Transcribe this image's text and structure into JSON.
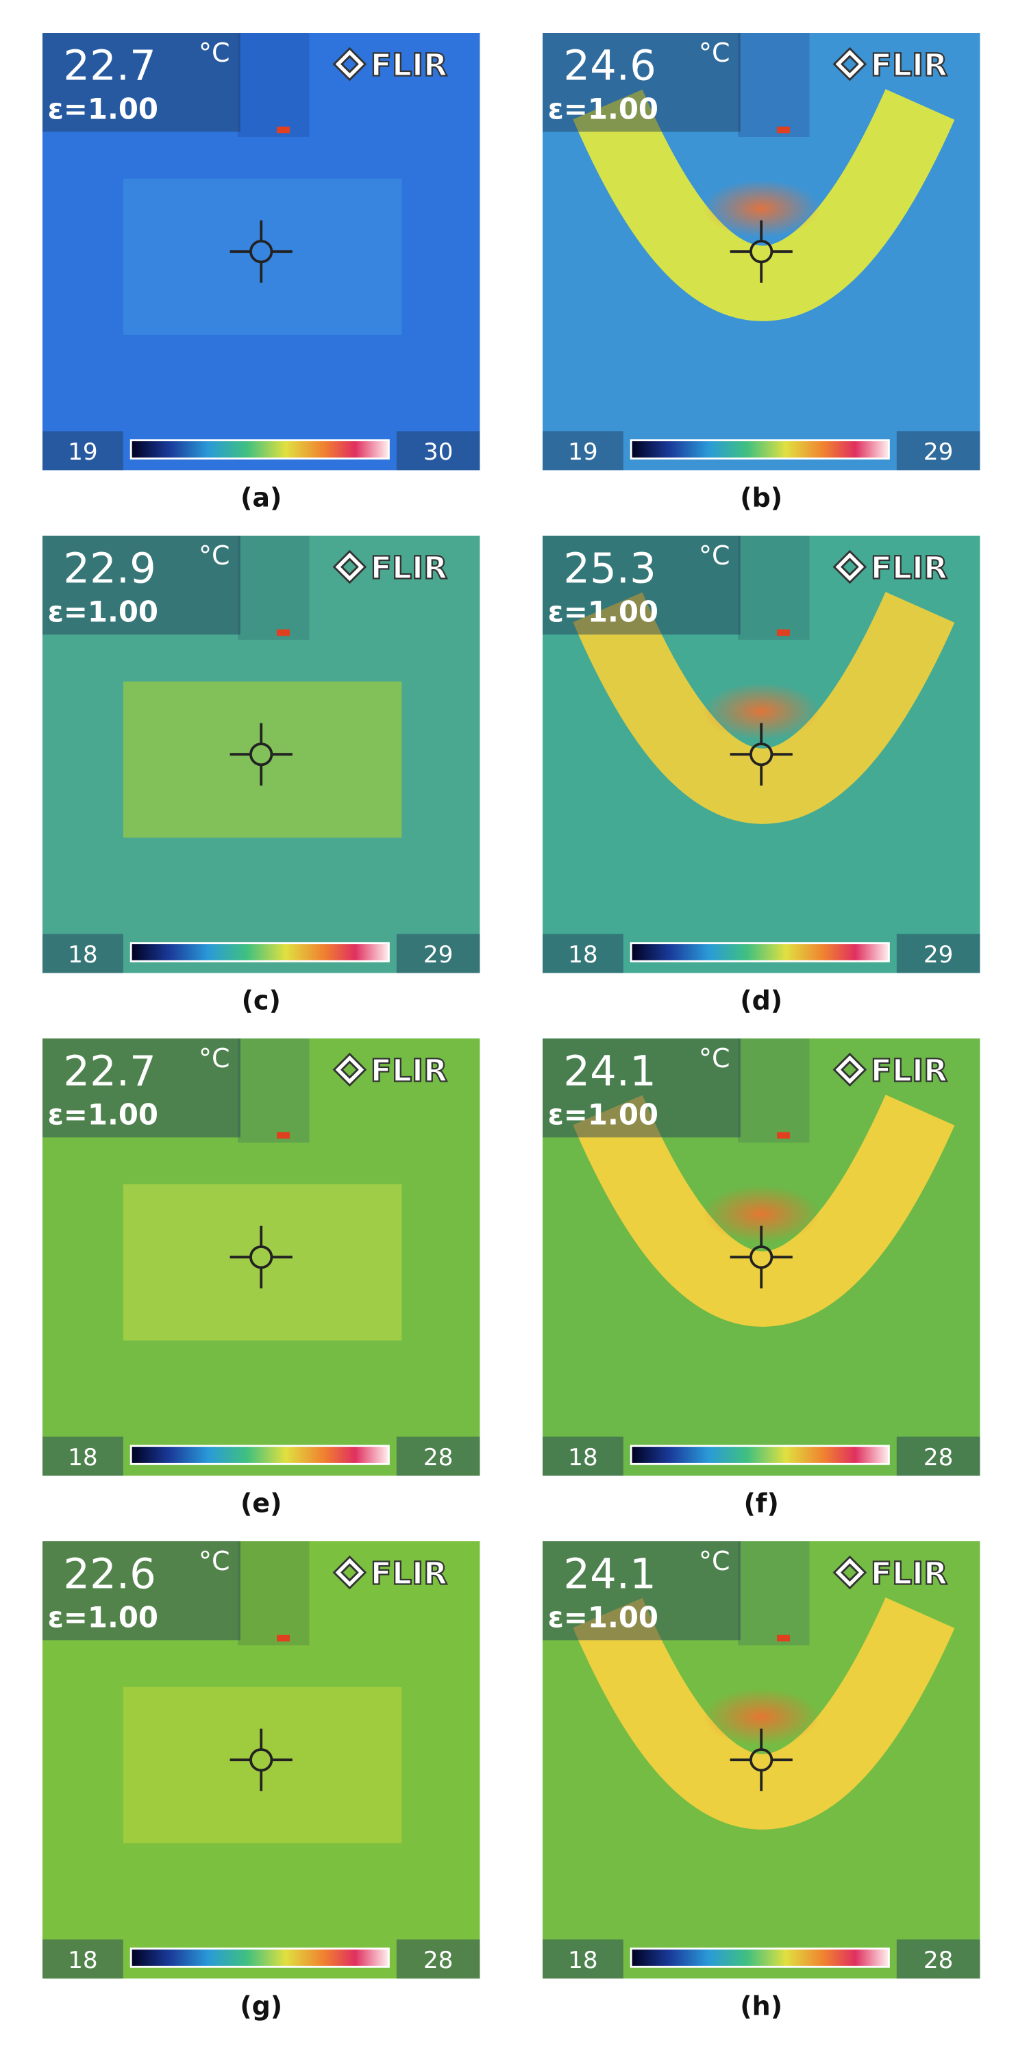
{
  "panels": [
    {
      "temperature": 22.7,
      "unit": "°C",
      "emissivity": "ε=1.00",
      "brand": "FLIR",
      "scale_min": 19,
      "scale_max": 30,
      "caption": "(a)"
    },
    {
      "temperature": 24.6,
      "unit": "°C",
      "emissivity": "ε=1.00",
      "brand": "FLIR",
      "scale_min": 19,
      "scale_max": 29,
      "caption": "(b)"
    },
    {
      "temperature": 22.9,
      "unit": "°C",
      "emissivity": "ε=1.00",
      "brand": "FLIR",
      "scale_min": 18,
      "scale_max": 29,
      "caption": "(c)"
    },
    {
      "temperature": 25.3,
      "unit": "°C",
      "emissivity": "ε=1.00",
      "brand": "FLIR",
      "scale_min": 18,
      "scale_max": 29,
      "caption": "(d)"
    },
    {
      "temperature": 22.7,
      "unit": "°C",
      "emissivity": "ε=1.00",
      "brand": "FLIR",
      "scale_min": 18,
      "scale_max": 28,
      "caption": "(e)"
    },
    {
      "temperature": 24.1,
      "unit": "°C",
      "emissivity": "ε=1.00",
      "brand": "FLIR",
      "scale_min": 18,
      "scale_max": 28,
      "caption": "(f)"
    },
    {
      "temperature": 22.6,
      "unit": "°C",
      "emissivity": "ε=1.00",
      "brand": "FLIR",
      "scale_min": 18,
      "scale_max": 28,
      "caption": "(g)"
    },
    {
      "temperature": 24.1,
      "unit": "°C",
      "emissivity": "ε=1.00",
      "brand": "FLIR",
      "scale_min": 18,
      "scale_max": 28,
      "caption": "(h)"
    }
  ]
}
